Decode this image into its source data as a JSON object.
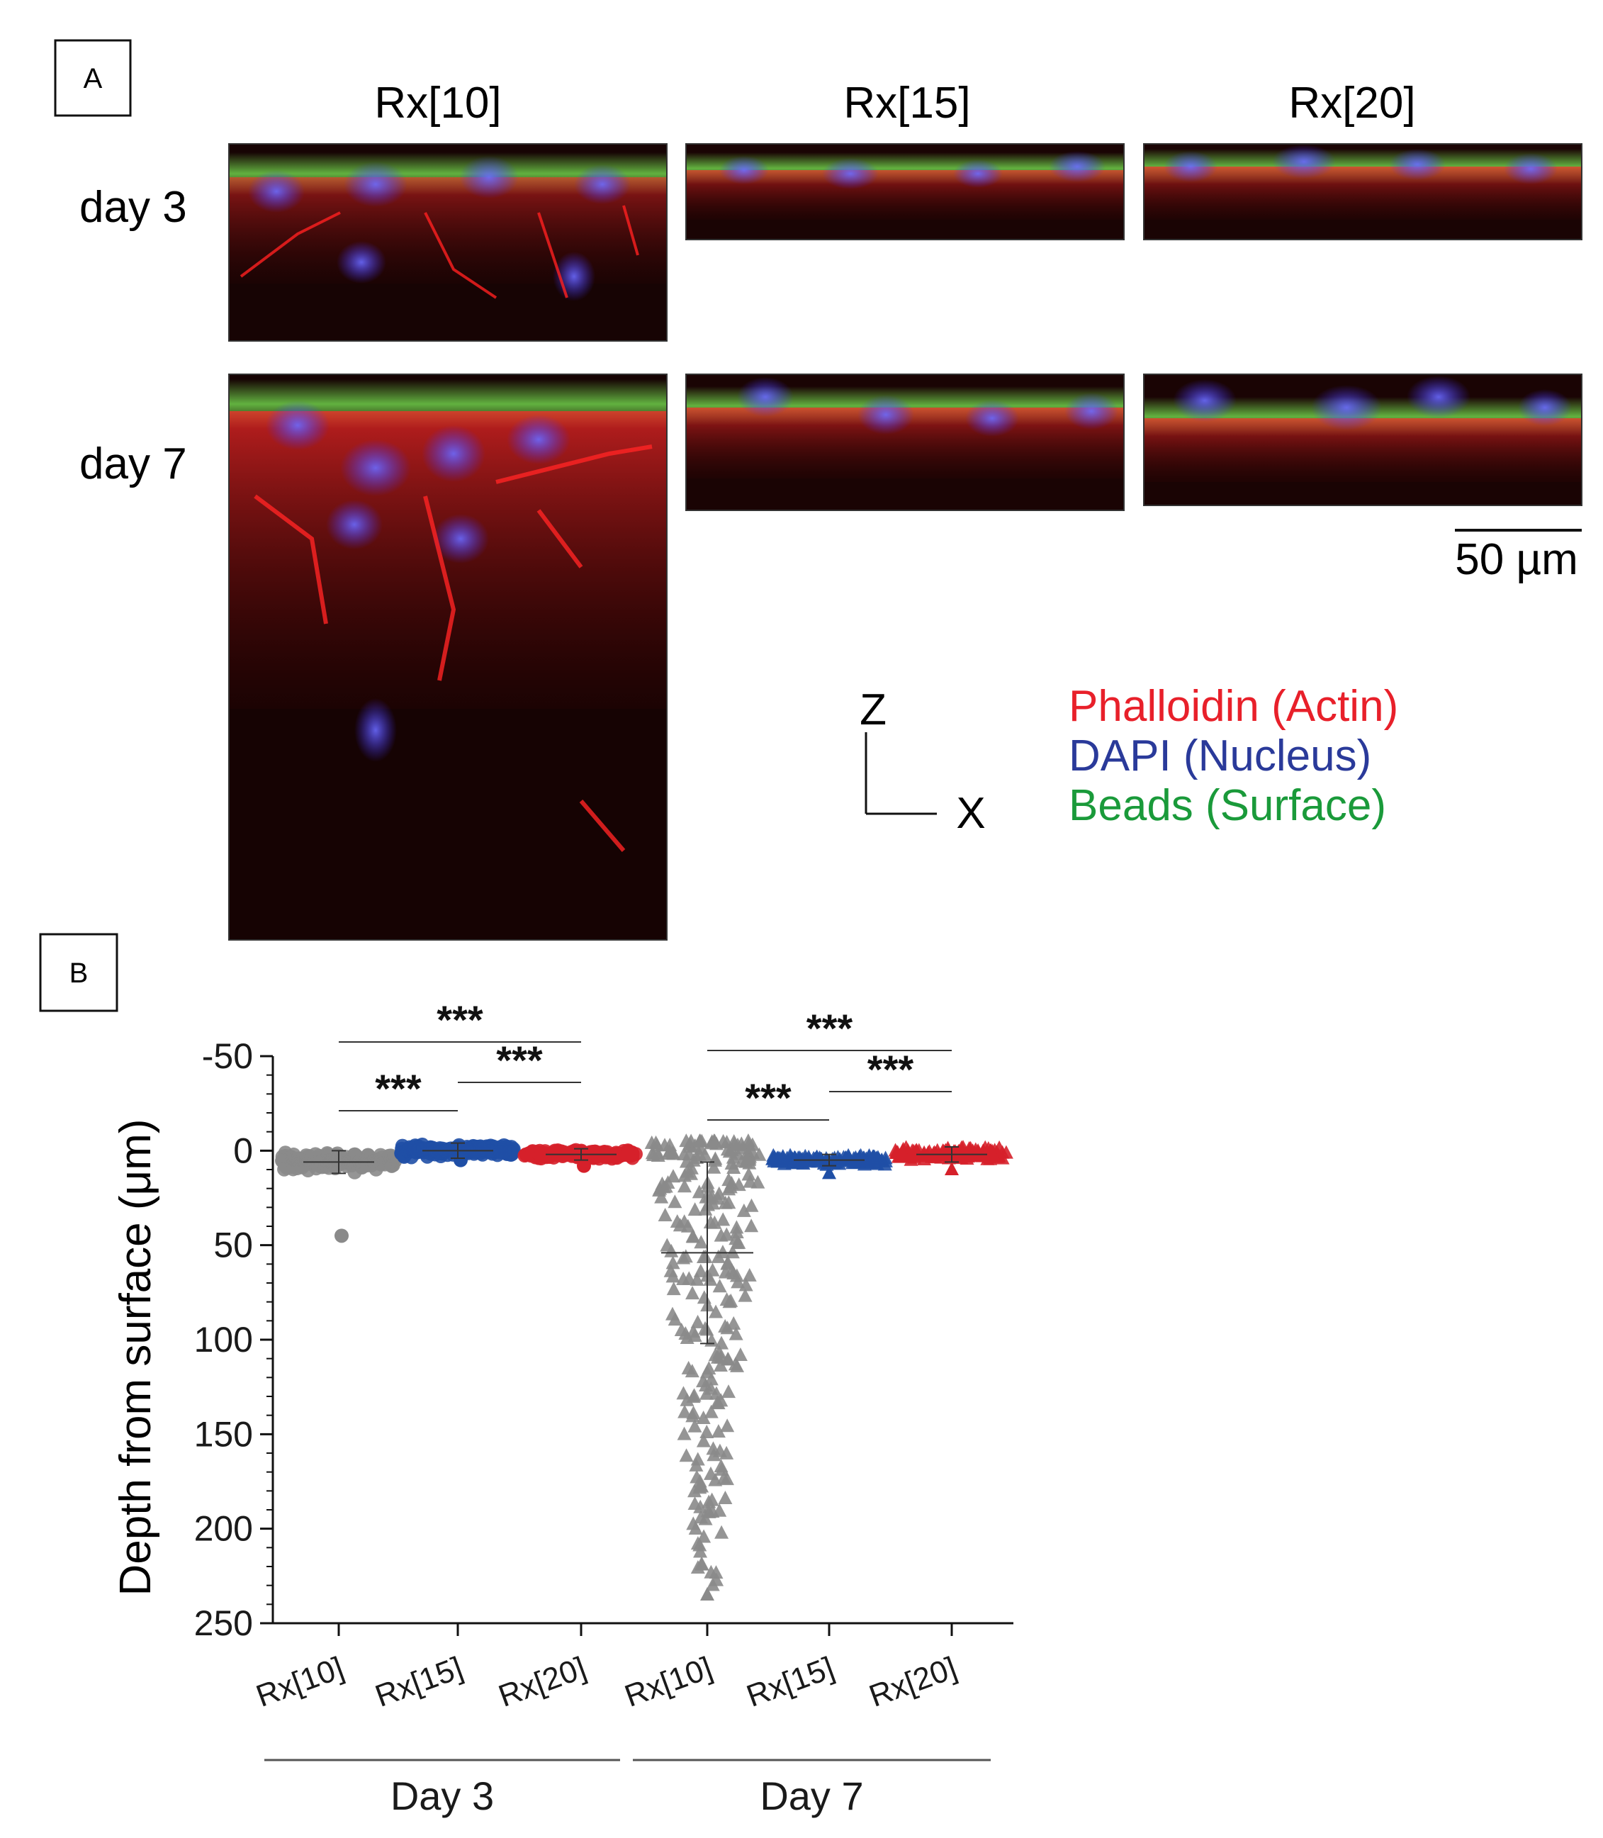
{
  "panel_a": {
    "label": "A",
    "columns": [
      "Rx[10]",
      "Rx[15]",
      "Rx[20]"
    ],
    "rows": [
      "day 3",
      "day 7"
    ],
    "scale_bar": "50 µm",
    "axes": {
      "z": "Z",
      "x": "X"
    },
    "legend": [
      {
        "text": "Phalloidin (Actin)",
        "color": "#e8202a"
      },
      {
        "text": "DAPI (Nucleus)",
        "color": "#2a3a9a"
      },
      {
        "text": "Beads (Surface)",
        "color": "#1a9a3a"
      }
    ]
  },
  "panel_b": {
    "label": "B"
  },
  "chart_data": {
    "type": "scatter",
    "ylabel": "Depth from surface (μm)",
    "ylim": [
      -50,
      250
    ],
    "y_inverted": true,
    "yticks": [
      -50,
      0,
      50,
      100,
      150,
      200,
      250
    ],
    "ytick_labels": [
      "-50",
      "0",
      "50",
      "100",
      "150",
      "200",
      "250"
    ],
    "categories": [
      "Rx[10]",
      "Rx[15]",
      "Rx[20]",
      "Rx[10]",
      "Rx[15]",
      "Rx[20]"
    ],
    "groups": [
      {
        "label": "Day 3",
        "categories": [
          0,
          1,
          2
        ]
      },
      {
        "label": "Day 7",
        "categories": [
          3,
          4,
          5
        ]
      }
    ],
    "series": [
      {
        "category": 0,
        "group": "Day 3",
        "marker": "circle",
        "color": "#8a8a8a",
        "mean": 6,
        "sd": 6,
        "min": -5,
        "max": 45
      },
      {
        "category": 1,
        "group": "Day 3",
        "marker": "circle",
        "color": "#1f4fa6",
        "mean": 0,
        "sd": 4,
        "min": -10,
        "max": 5
      },
      {
        "category": 2,
        "group": "Day 3",
        "marker": "circle",
        "color": "#d6202a",
        "mean": 2,
        "sd": 3,
        "min": -6,
        "max": 8
      },
      {
        "category": 3,
        "group": "Day 7",
        "marker": "triangle",
        "color": "#8a8a8a",
        "mean": 54,
        "sd": 48,
        "min": -5,
        "max": 235
      },
      {
        "category": 4,
        "group": "Day 7",
        "marker": "triangle",
        "color": "#1f4fa6",
        "mean": 5,
        "sd": 3,
        "min": -4,
        "max": 12
      },
      {
        "category": 5,
        "group": "Day 7",
        "marker": "triangle",
        "color": "#d6202a",
        "mean": 2,
        "sd": 4,
        "min": -8,
        "max": 10
      }
    ],
    "significance": [
      {
        "from": 0,
        "to": 1,
        "label": "***"
      },
      {
        "from": 1,
        "to": 2,
        "label": "***"
      },
      {
        "from": 0,
        "to": 2,
        "label": "***"
      },
      {
        "from": 3,
        "to": 4,
        "label": "***"
      },
      {
        "from": 4,
        "to": 5,
        "label": "***"
      },
      {
        "from": 3,
        "to": 5,
        "label": "***"
      }
    ]
  }
}
